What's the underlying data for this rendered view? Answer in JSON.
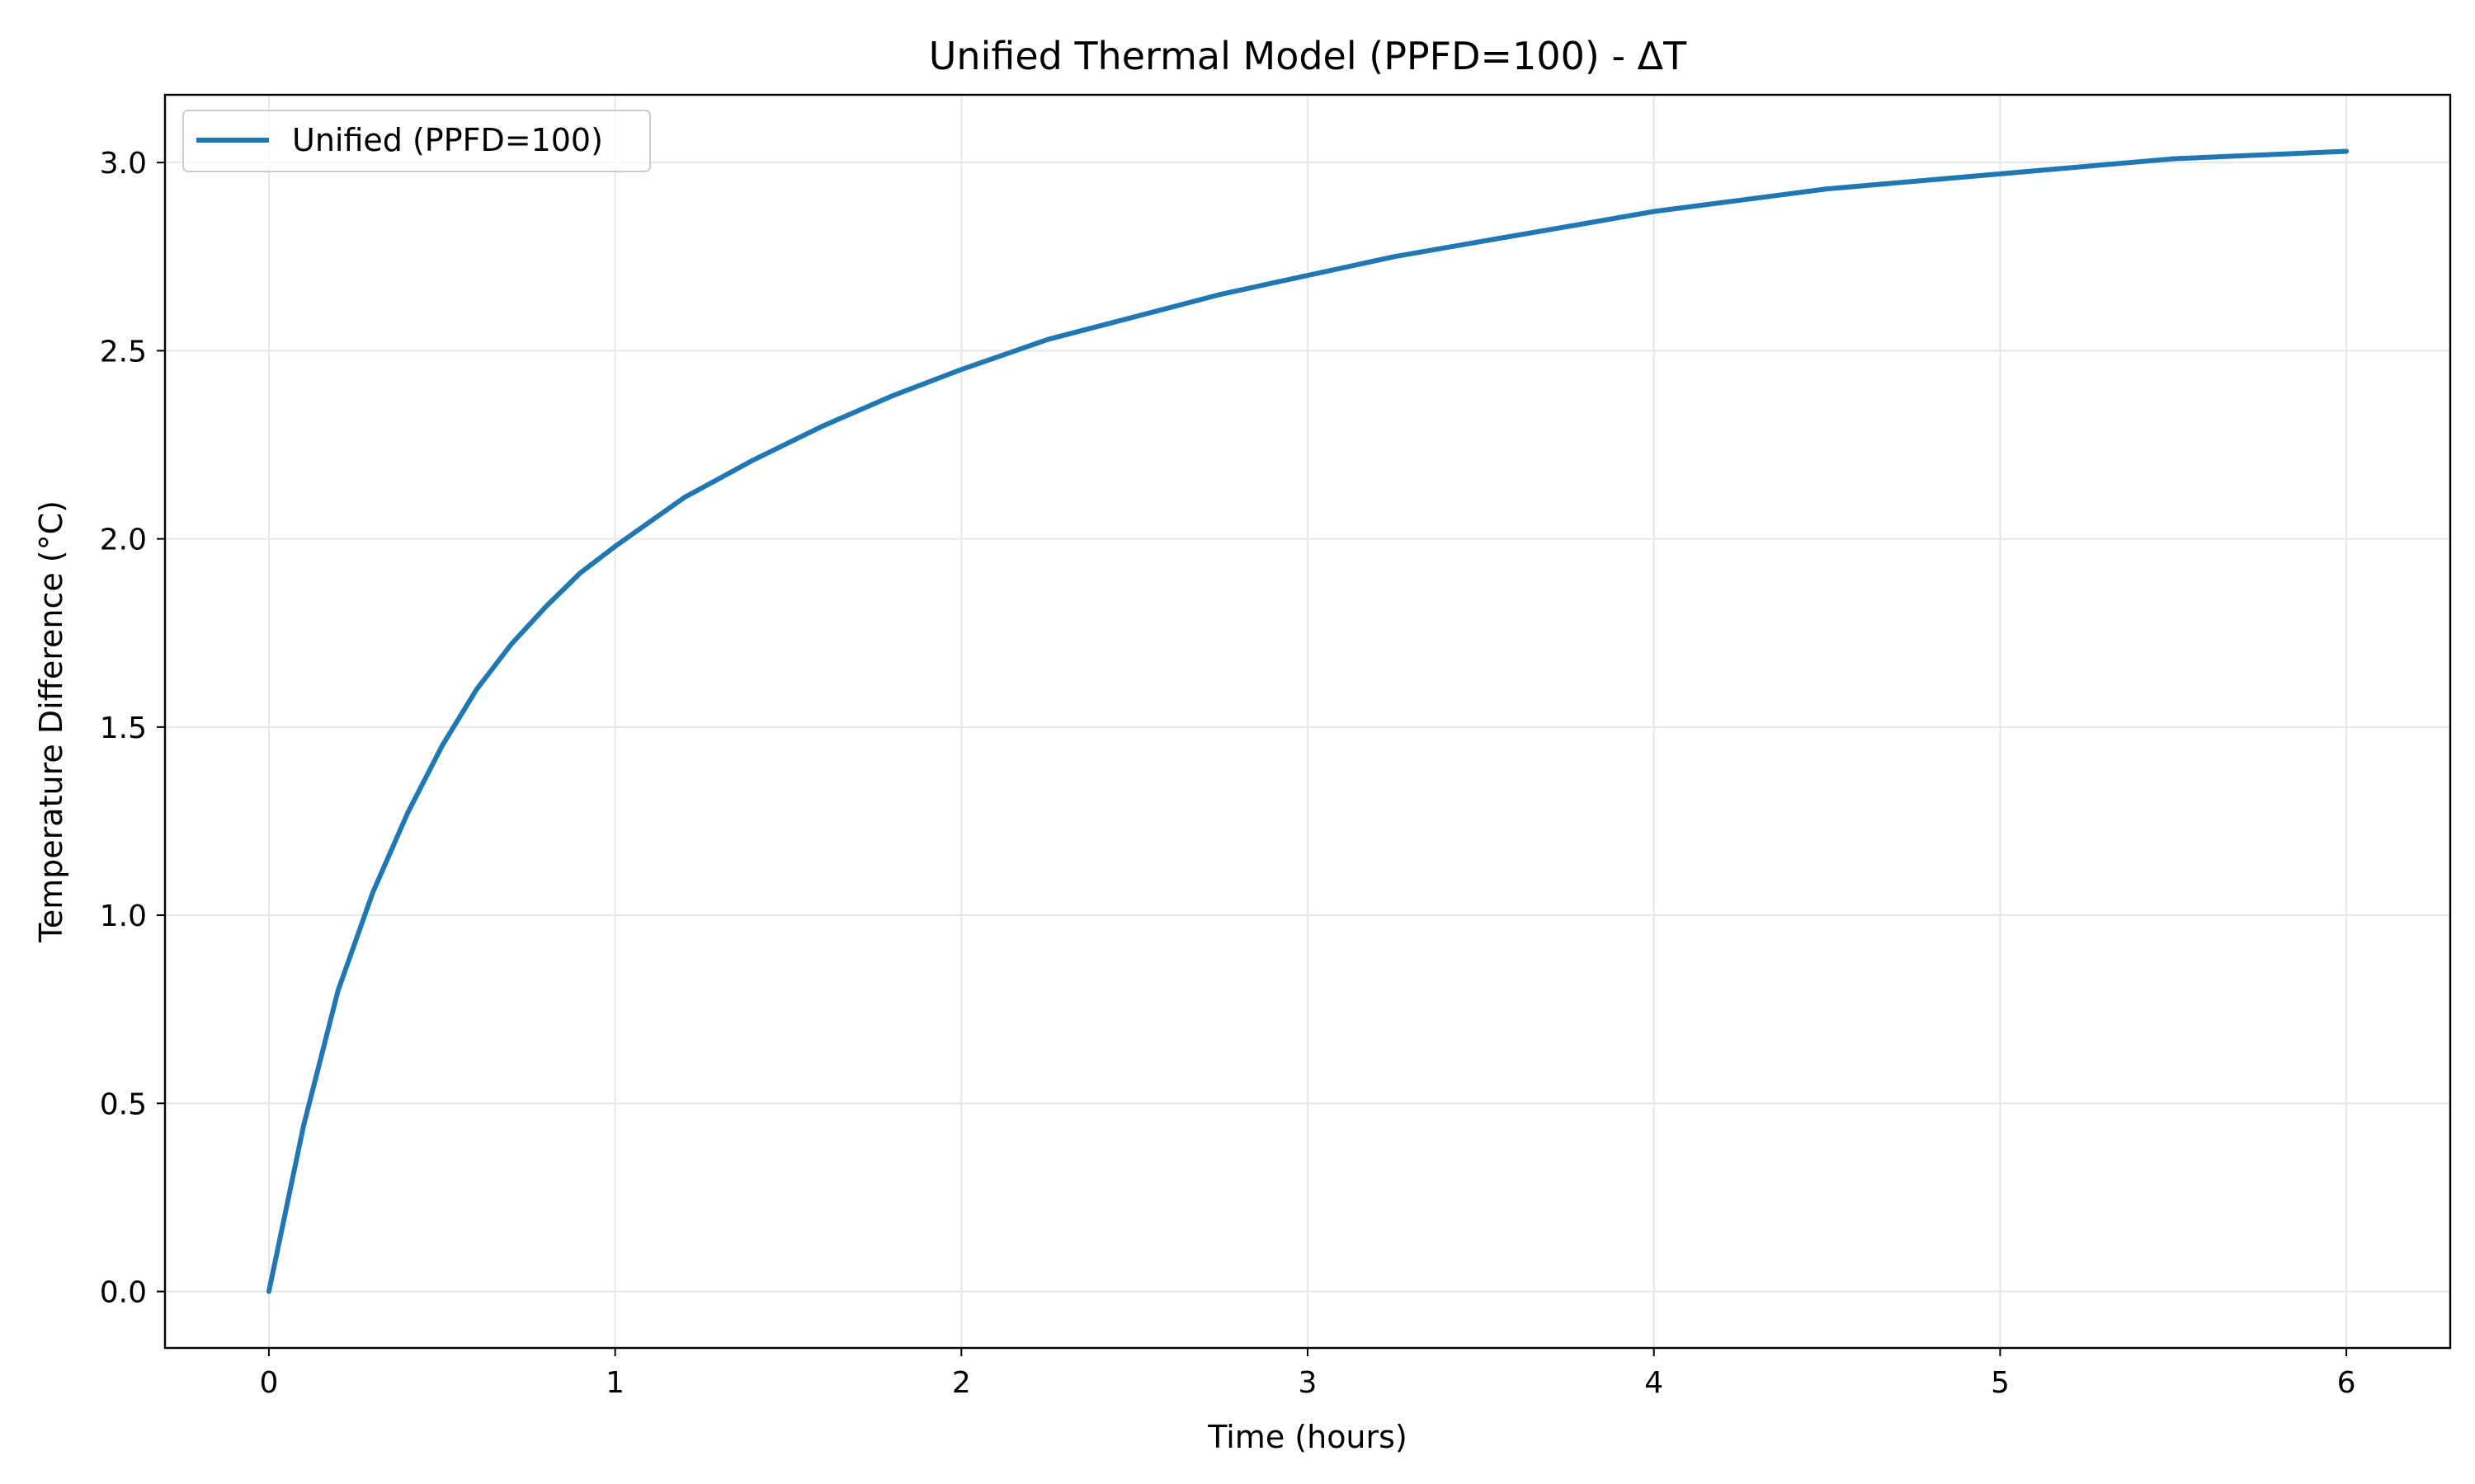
{
  "chart_data": {
    "type": "line",
    "title": "Unified Thermal Model (PPFD=100) - ΔT",
    "xlabel": "Time (hours)",
    "ylabel": "Temperature Difference (°C)",
    "xlim": [
      -0.3,
      6.3
    ],
    "ylim": [
      -0.15,
      3.18
    ],
    "xticks": [
      0,
      1,
      2,
      3,
      4,
      5,
      6
    ],
    "xtick_labels": [
      "0",
      "1",
      "2",
      "3",
      "4",
      "5",
      "6"
    ],
    "yticks": [
      0.0,
      0.5,
      1.0,
      1.5,
      2.0,
      2.5,
      3.0
    ],
    "ytick_labels": [
      "0.0",
      "0.5",
      "1.0",
      "1.5",
      "2.0",
      "2.5",
      "3.0"
    ],
    "grid": true,
    "legend_position": "top-left",
    "series": [
      {
        "name": "Unified (PPFD=100)",
        "color": "#1f77b4",
        "x": [
          0,
          0.1,
          0.2,
          0.3,
          0.4,
          0.5,
          0.6,
          0.7,
          0.8,
          0.9,
          1.0,
          1.2,
          1.4,
          1.6,
          1.8,
          2.0,
          2.25,
          2.5,
          2.75,
          3.0,
          3.25,
          3.5,
          3.75,
          4.0,
          4.25,
          4.5,
          4.75,
          5.0,
          5.25,
          5.5,
          5.75,
          6.0
        ],
        "y": [
          0.0,
          0.44,
          0.8,
          1.06,
          1.27,
          1.45,
          1.6,
          1.72,
          1.82,
          1.91,
          1.98,
          2.11,
          2.21,
          2.3,
          2.38,
          2.45,
          2.53,
          2.59,
          2.65,
          2.7,
          2.75,
          2.79,
          2.83,
          2.87,
          2.9,
          2.93,
          2.95,
          2.97,
          2.99,
          3.01,
          3.02,
          3.03
        ]
      }
    ]
  }
}
